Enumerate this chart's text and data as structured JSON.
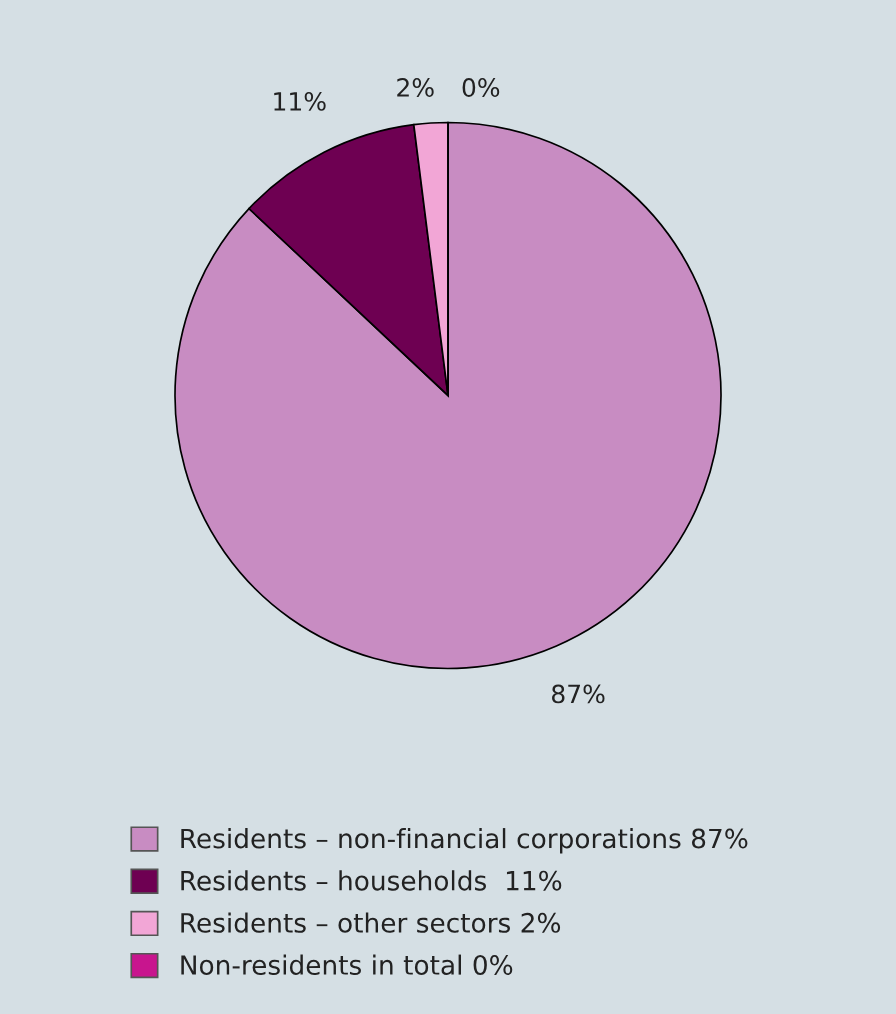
{
  "chart_data": {
    "type": "pie",
    "categories": [
      "Residents – non-financial corporations 87%",
      "Residents – households  11%",
      "Residents – other sectors 2%",
      "Non-residents in total 0%"
    ],
    "values": [
      87,
      11,
      2,
      0
    ],
    "colors": [
      "#c88cc2",
      "#6e0052",
      "#f2a6d6",
      "#c8158e"
    ],
    "value_labels": [
      "87%",
      "11%",
      "2%",
      "0%"
    ],
    "legend": "bottom"
  }
}
